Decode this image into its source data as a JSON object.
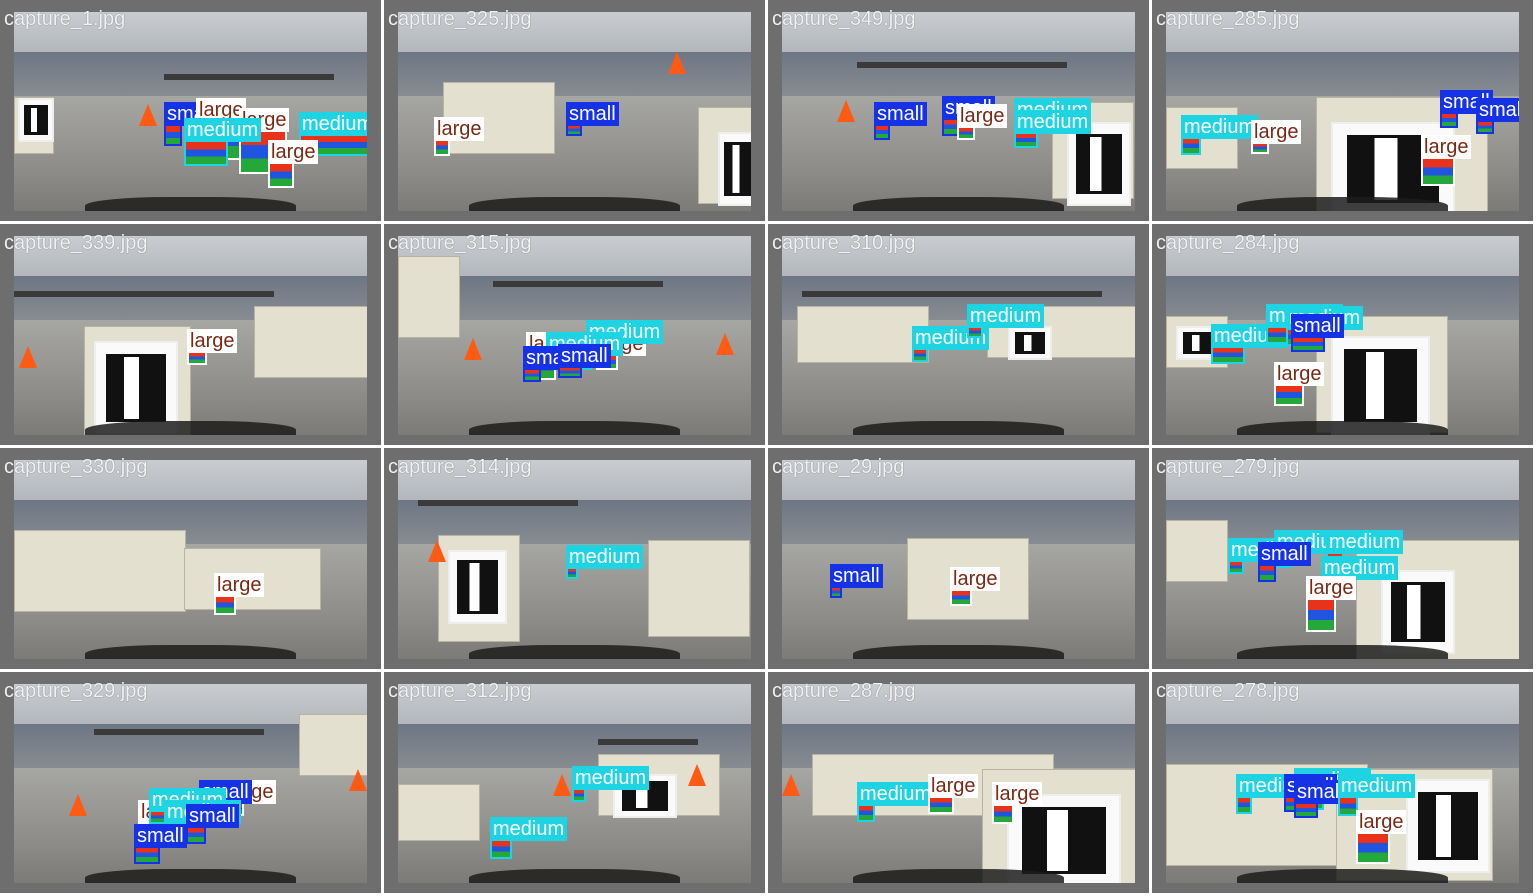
{
  "colors": {
    "small": "#1532e6",
    "medium": "#1fd4e2",
    "large": "#ffffff",
    "large_text": "#7a2a14",
    "tile_bg": "#6e6e6e"
  },
  "tiles": [
    {
      "caption": "capture_1.jpg",
      "labels": [
        {
          "cls": "small",
          "text": "small"
        },
        {
          "cls": "large",
          "text": "large"
        },
        {
          "cls": "large",
          "text": "large"
        },
        {
          "cls": "medium",
          "text": "medium"
        },
        {
          "cls": "medium",
          "text": "medium"
        },
        {
          "cls": "large",
          "text": "large"
        }
      ]
    },
    {
      "caption": "capture_325.jpg",
      "labels": [
        {
          "cls": "large",
          "text": "large"
        },
        {
          "cls": "small",
          "text": "small"
        }
      ]
    },
    {
      "caption": "capture_349.jpg",
      "labels": [
        {
          "cls": "small",
          "text": "small"
        },
        {
          "cls": "small",
          "text": "small"
        },
        {
          "cls": "large",
          "text": "large"
        },
        {
          "cls": "medium",
          "text": "medium"
        },
        {
          "cls": "medium",
          "text": "medium"
        }
      ]
    },
    {
      "caption": "capture_285.jpg",
      "labels": [
        {
          "cls": "medium",
          "text": "medium"
        },
        {
          "cls": "large",
          "text": "large"
        },
        {
          "cls": "small",
          "text": "small"
        },
        {
          "cls": "small",
          "text": "small"
        },
        {
          "cls": "large",
          "text": "large"
        }
      ]
    },
    {
      "caption": "capture_339.jpg",
      "labels": [
        {
          "cls": "large",
          "text": "large"
        }
      ]
    },
    {
      "caption": "capture_315.jpg",
      "labels": [
        {
          "cls": "large",
          "text": "large"
        },
        {
          "cls": "large",
          "text": "large"
        },
        {
          "cls": "medium",
          "text": "medium"
        },
        {
          "cls": "medium",
          "text": "medium"
        },
        {
          "cls": "small",
          "text": "small"
        },
        {
          "cls": "small",
          "text": "small"
        }
      ]
    },
    {
      "caption": "capture_310.jpg",
      "labels": [
        {
          "cls": "medium",
          "text": "medium"
        },
        {
          "cls": "medium",
          "text": "medium"
        }
      ]
    },
    {
      "caption": "capture_284.jpg",
      "labels": [
        {
          "cls": "medium",
          "text": "medium"
        },
        {
          "cls": "medium",
          "text": "medium"
        },
        {
          "cls": "medium",
          "text": "medium"
        },
        {
          "cls": "small",
          "text": "small"
        },
        {
          "cls": "large",
          "text": "large"
        }
      ]
    },
    {
      "caption": "capture_330.jpg",
      "labels": [
        {
          "cls": "large",
          "text": "large"
        }
      ]
    },
    {
      "caption": "capture_314.jpg",
      "labels": [
        {
          "cls": "medium",
          "text": "medium"
        }
      ]
    },
    {
      "caption": "capture_29.jpg",
      "labels": [
        {
          "cls": "small",
          "text": "small"
        },
        {
          "cls": "large",
          "text": "large"
        }
      ]
    },
    {
      "caption": "capture_279.jpg",
      "labels": [
        {
          "cls": "medium",
          "text": "medium"
        },
        {
          "cls": "medium",
          "text": "medium"
        },
        {
          "cls": "medium",
          "text": "medium"
        },
        {
          "cls": "small",
          "text": "small"
        },
        {
          "cls": "medium",
          "text": "medium"
        },
        {
          "cls": "large",
          "text": "large"
        }
      ]
    },
    {
      "caption": "capture_329.jpg",
      "labels": [
        {
          "cls": "large",
          "text": "large"
        },
        {
          "cls": "large",
          "text": "large"
        },
        {
          "cls": "small",
          "text": "small"
        },
        {
          "cls": "medium",
          "text": "medium"
        },
        {
          "cls": "medium",
          "text": "medium"
        },
        {
          "cls": "small",
          "text": "small"
        },
        {
          "cls": "small",
          "text": "small"
        }
      ]
    },
    {
      "caption": "capture_312.jpg",
      "labels": [
        {
          "cls": "medium",
          "text": "medium"
        },
        {
          "cls": "medium",
          "text": "medium"
        }
      ]
    },
    {
      "caption": "capture_287.jpg",
      "labels": [
        {
          "cls": "medium",
          "text": "medium"
        },
        {
          "cls": "large",
          "text": "large"
        },
        {
          "cls": "large",
          "text": "large"
        }
      ]
    },
    {
      "caption": "capture_278.jpg",
      "labels": [
        {
          "cls": "medium",
          "text": "medium"
        },
        {
          "cls": "medium",
          "text": "medium"
        },
        {
          "cls": "small",
          "text": "small"
        },
        {
          "cls": "small",
          "text": "small"
        },
        {
          "cls": "medium",
          "text": "medium"
        },
        {
          "cls": "large",
          "text": "large"
        }
      ]
    }
  ]
}
